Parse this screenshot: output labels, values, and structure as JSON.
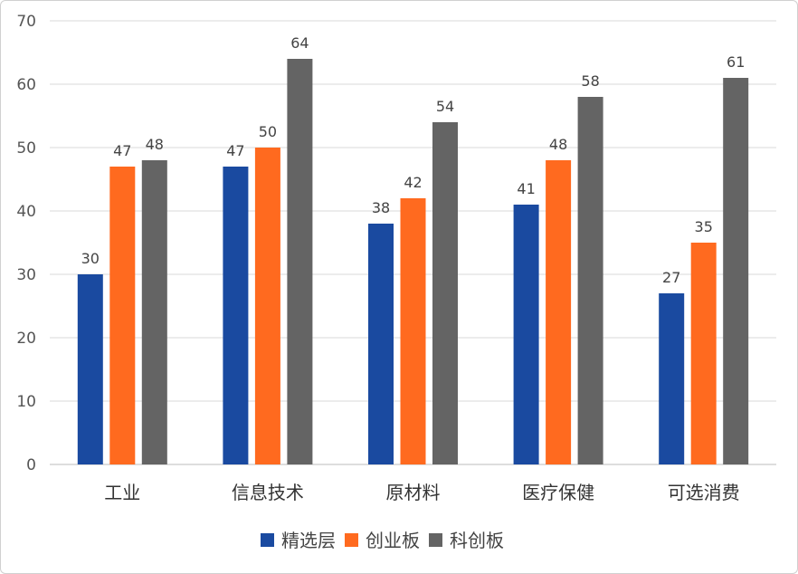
{
  "chart_data": {
    "type": "bar",
    "title": "",
    "xlabel": "",
    "ylabel": "",
    "ylim": [
      0,
      70
    ],
    "yticks": [
      0,
      10,
      20,
      30,
      40,
      50,
      60,
      70
    ],
    "grid": true,
    "legend_position": "bottom",
    "categories": [
      "工业",
      "信息技术",
      "原材料",
      "医疗保健",
      "可选消费"
    ],
    "series": [
      {
        "name": "精选层",
        "color": "#1a4aa0",
        "values": [
          30,
          47,
          38,
          41,
          27
        ]
      },
      {
        "name": "创业板",
        "color": "#ff6a1f",
        "values": [
          47,
          50,
          42,
          48,
          35
        ]
      },
      {
        "name": "科创板",
        "color": "#646464",
        "values": [
          48,
          64,
          54,
          58,
          61
        ]
      }
    ]
  }
}
